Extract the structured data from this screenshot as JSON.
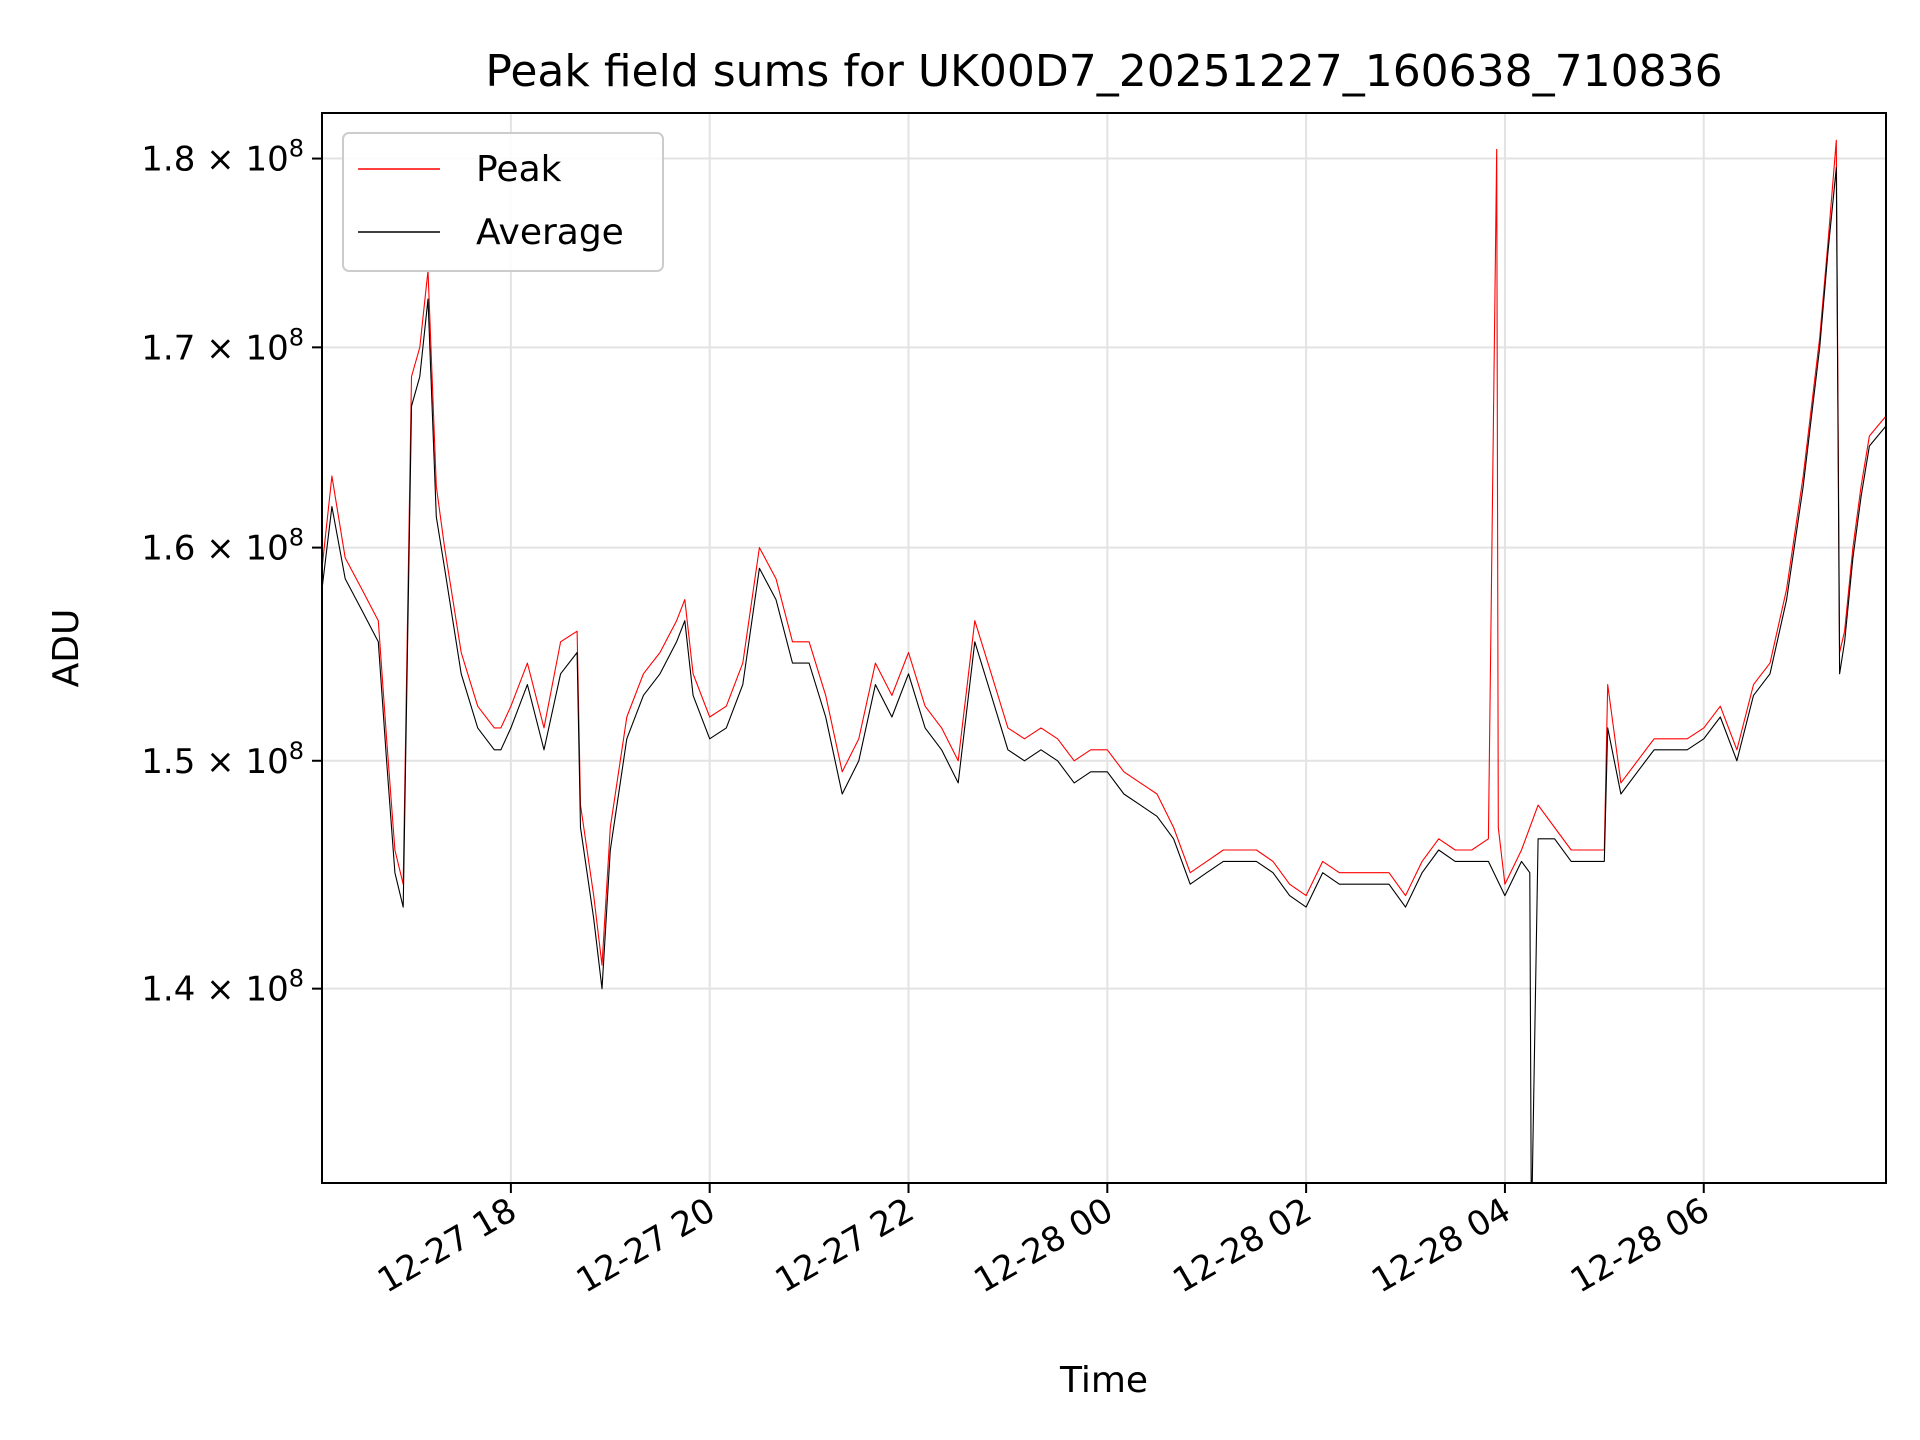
{
  "chart_data": {
    "type": "line",
    "title": "Peak field sums for UK00D7_20251227_160638_710836",
    "xlabel": "Time",
    "ylabel": "ADU",
    "scale_y": "log",
    "grid": true,
    "legend_position": "top-left",
    "xlim": [
      "2025-12-27 16:06",
      "2025-12-28 07:50"
    ],
    "ylim": [
      132000000,
      182500000
    ],
    "x_ticks": [
      {
        "t": "2025-12-27 18:00",
        "label": "12-27 18"
      },
      {
        "t": "2025-12-27 20:00",
        "label": "12-27 20"
      },
      {
        "t": "2025-12-27 22:00",
        "label": "12-27 22"
      },
      {
        "t": "2025-12-28 00:00",
        "label": "12-28 00"
      },
      {
        "t": "2025-12-28 02:00",
        "label": "12-28 02"
      },
      {
        "t": "2025-12-28 04:00",
        "label": "12-28 04"
      },
      {
        "t": "2025-12-28 06:00",
        "label": "12-28 06"
      }
    ],
    "y_ticks": [
      {
        "value": 140000000,
        "mantissa": "1.4",
        "exponent": "8"
      },
      {
        "value": 150000000,
        "mantissa": "1.5",
        "exponent": "8"
      },
      {
        "value": 160000000,
        "mantissa": "1.6",
        "exponent": "8"
      },
      {
        "value": 170000000,
        "mantissa": "1.7",
        "exponent": "8"
      },
      {
        "value": 180000000,
        "mantissa": "1.8",
        "exponent": "8"
      }
    ],
    "series": [
      {
        "name": "Average",
        "color": "#000000",
        "x": [
          "2025-12-27 16:06",
          "2025-12-27 16:12",
          "2025-12-27 16:20",
          "2025-12-27 16:30",
          "2025-12-27 16:40",
          "2025-12-27 16:45",
          "2025-12-27 16:50",
          "2025-12-27 16:55",
          "2025-12-27 17:00",
          "2025-12-27 17:05",
          "2025-12-27 17:10",
          "2025-12-27 17:15",
          "2025-12-27 17:20",
          "2025-12-27 17:30",
          "2025-12-27 17:40",
          "2025-12-27 17:50",
          "2025-12-27 17:54",
          "2025-12-27 18:00",
          "2025-12-27 18:10",
          "2025-12-27 18:20",
          "2025-12-27 18:30",
          "2025-12-27 18:40",
          "2025-12-27 18:42",
          "2025-12-27 18:50",
          "2025-12-27 18:55",
          "2025-12-27 19:00",
          "2025-12-27 19:10",
          "2025-12-27 19:20",
          "2025-12-27 19:30",
          "2025-12-27 19:40",
          "2025-12-27 19:45",
          "2025-12-27 19:50",
          "2025-12-27 20:00",
          "2025-12-27 20:10",
          "2025-12-27 20:20",
          "2025-12-27 20:30",
          "2025-12-27 20:40",
          "2025-12-27 20:50",
          "2025-12-27 21:00",
          "2025-12-27 21:10",
          "2025-12-27 21:20",
          "2025-12-27 21:30",
          "2025-12-27 21:40",
          "2025-12-27 21:50",
          "2025-12-27 22:00",
          "2025-12-27 22:10",
          "2025-12-27 22:20",
          "2025-12-27 22:30",
          "2025-12-27 22:40",
          "2025-12-27 22:50",
          "2025-12-27 23:00",
          "2025-12-27 23:10",
          "2025-12-27 23:20",
          "2025-12-27 23:30",
          "2025-12-27 23:40",
          "2025-12-27 23:50",
          "2025-12-28 00:00",
          "2025-12-28 00:10",
          "2025-12-28 00:20",
          "2025-12-28 00:30",
          "2025-12-28 00:40",
          "2025-12-28 00:50",
          "2025-12-28 01:00",
          "2025-12-28 01:10",
          "2025-12-28 01:20",
          "2025-12-28 01:30",
          "2025-12-28 01:40",
          "2025-12-28 01:50",
          "2025-12-28 02:00",
          "2025-12-28 02:10",
          "2025-12-28 02:20",
          "2025-12-28 02:30",
          "2025-12-28 02:40",
          "2025-12-28 02:50",
          "2025-12-28 03:00",
          "2025-12-28 03:10",
          "2025-12-28 03:20",
          "2025-12-28 03:30",
          "2025-12-28 03:40",
          "2025-12-28 03:50",
          "2025-12-28 04:00",
          "2025-12-28 04:10",
          "2025-12-28 04:15",
          "2025-12-28 04:16",
          "2025-12-28 04:20",
          "2025-12-28 04:30",
          "2025-12-28 04:40",
          "2025-12-28 04:50",
          "2025-12-28 05:00",
          "2025-12-28 05:02",
          "2025-12-28 05:10",
          "2025-12-28 05:20",
          "2025-12-28 05:30",
          "2025-12-28 05:40",
          "2025-12-28 05:50",
          "2025-12-28 06:00",
          "2025-12-28 06:10",
          "2025-12-28 06:20",
          "2025-12-28 06:30",
          "2025-12-28 06:40",
          "2025-12-28 06:50",
          "2025-12-28 07:00",
          "2025-12-28 07:10",
          "2025-12-28 07:15",
          "2025-12-28 07:20",
          "2025-12-28 07:22",
          "2025-12-28 07:25",
          "2025-12-28 07:30",
          "2025-12-28 07:35",
          "2025-12-28 07:40",
          "2025-12-28 07:45",
          "2025-12-28 07:50"
        ],
        "values": [
          158000000,
          162000000,
          158500000,
          157000000,
          155500000,
          150000000,
          145000000,
          143500000,
          167000000,
          168500000,
          172500000,
          161500000,
          159000000,
          154000000,
          151500000,
          150500000,
          150500000,
          151500000,
          153500000,
          150500000,
          154000000,
          155000000,
          147000000,
          143000000,
          140000000,
          146000000,
          151000000,
          153000000,
          154000000,
          155500000,
          156500000,
          153000000,
          151000000,
          151500000,
          153500000,
          159000000,
          157500000,
          154500000,
          154500000,
          152000000,
          148500000,
          150000000,
          153500000,
          152000000,
          154000000,
          151500000,
          150500000,
          149000000,
          155500000,
          153000000,
          150500000,
          150000000,
          150500000,
          150000000,
          149000000,
          149500000,
          149500000,
          148500000,
          148000000,
          147500000,
          146500000,
          144500000,
          145000000,
          145500000,
          145500000,
          145500000,
          145000000,
          144000000,
          143500000,
          145000000,
          144500000,
          144500000,
          144500000,
          144500000,
          143500000,
          145000000,
          146000000,
          145500000,
          145500000,
          145500000,
          144000000,
          145500000,
          145000000,
          130000000,
          146500000,
          146500000,
          145500000,
          145500000,
          145500000,
          151500000,
          148500000,
          149500000,
          150500000,
          150500000,
          150500000,
          151000000,
          152000000,
          150000000,
          153000000,
          154000000,
          157500000,
          163000000,
          170000000,
          175000000,
          179500000,
          154000000,
          155500000,
          159500000,
          162500000,
          165000000,
          165500000,
          166000000
        ],
        "stroke_width": 1.1
      },
      {
        "name": "Peak",
        "color": "#ff0000",
        "x": [
          "2025-12-27 16:06",
          "2025-12-27 16:12",
          "2025-12-27 16:20",
          "2025-12-27 16:30",
          "2025-12-27 16:40",
          "2025-12-27 16:45",
          "2025-12-27 16:50",
          "2025-12-27 16:55",
          "2025-12-27 17:00",
          "2025-12-27 17:05",
          "2025-12-27 17:10",
          "2025-12-27 17:15",
          "2025-12-27 17:20",
          "2025-12-27 17:30",
          "2025-12-27 17:40",
          "2025-12-27 17:50",
          "2025-12-27 17:54",
          "2025-12-27 18:00",
          "2025-12-27 18:10",
          "2025-12-27 18:20",
          "2025-12-27 18:30",
          "2025-12-27 18:40",
          "2025-12-27 18:42",
          "2025-12-27 18:50",
          "2025-12-27 18:55",
          "2025-12-27 19:00",
          "2025-12-27 19:10",
          "2025-12-27 19:20",
          "2025-12-27 19:30",
          "2025-12-27 19:40",
          "2025-12-27 19:45",
          "2025-12-27 19:50",
          "2025-12-27 20:00",
          "2025-12-27 20:10",
          "2025-12-27 20:20",
          "2025-12-27 20:30",
          "2025-12-27 20:40",
          "2025-12-27 20:50",
          "2025-12-27 21:00",
          "2025-12-27 21:10",
          "2025-12-27 21:20",
          "2025-12-27 21:30",
          "2025-12-27 21:40",
          "2025-12-27 21:50",
          "2025-12-27 22:00",
          "2025-12-27 22:10",
          "2025-12-27 22:20",
          "2025-12-27 22:30",
          "2025-12-27 22:40",
          "2025-12-27 22:50",
          "2025-12-27 23:00",
          "2025-12-27 23:10",
          "2025-12-27 23:20",
          "2025-12-27 23:30",
          "2025-12-27 23:40",
          "2025-12-27 23:50",
          "2025-12-28 00:00",
          "2025-12-28 00:10",
          "2025-12-28 00:20",
          "2025-12-28 00:30",
          "2025-12-28 00:40",
          "2025-12-28 00:50",
          "2025-12-28 01:00",
          "2025-12-28 01:10",
          "2025-12-28 01:20",
          "2025-12-28 01:30",
          "2025-12-28 01:40",
          "2025-12-28 01:50",
          "2025-12-28 02:00",
          "2025-12-28 02:10",
          "2025-12-28 02:20",
          "2025-12-28 02:30",
          "2025-12-28 02:40",
          "2025-12-28 02:50",
          "2025-12-28 03:00",
          "2025-12-28 03:10",
          "2025-12-28 03:20",
          "2025-12-28 03:30",
          "2025-12-28 03:40",
          "2025-12-28 03:50",
          "2025-12-28 03:55",
          "2025-12-28 03:56",
          "2025-12-28 04:00",
          "2025-12-28 04:10",
          "2025-12-28 04:20",
          "2025-12-28 04:30",
          "2025-12-28 04:40",
          "2025-12-28 04:50",
          "2025-12-28 05:00",
          "2025-12-28 05:02",
          "2025-12-28 05:10",
          "2025-12-28 05:20",
          "2025-12-28 05:30",
          "2025-12-28 05:40",
          "2025-12-28 05:50",
          "2025-12-28 06:00",
          "2025-12-28 06:10",
          "2025-12-28 06:20",
          "2025-12-28 06:30",
          "2025-12-28 06:40",
          "2025-12-28 06:50",
          "2025-12-28 07:00",
          "2025-12-28 07:10",
          "2025-12-28 07:15",
          "2025-12-28 07:20",
          "2025-12-28 07:22",
          "2025-12-28 07:25",
          "2025-12-28 07:30",
          "2025-12-28 07:35",
          "2025-12-28 07:40",
          "2025-12-28 07:45",
          "2025-12-28 07:50"
        ],
        "values": [
          159000000,
          163500000,
          159500000,
          158000000,
          156500000,
          151000000,
          146000000,
          144500000,
          168500000,
          170000000,
          174000000,
          163000000,
          160000000,
          155000000,
          152500000,
          151500000,
          151500000,
          152500000,
          154500000,
          151500000,
          155500000,
          156000000,
          148000000,
          144000000,
          141000000,
          147000000,
          152000000,
          154000000,
          155000000,
          156500000,
          157500000,
          154000000,
          152000000,
          152500000,
          154500000,
          160000000,
          158500000,
          155500000,
          155500000,
          153000000,
          149500000,
          151000000,
          154500000,
          153000000,
          155000000,
          152500000,
          151500000,
          150000000,
          156500000,
          154000000,
          151500000,
          151000000,
          151500000,
          151000000,
          150000000,
          150500000,
          150500000,
          149500000,
          149000000,
          148500000,
          147000000,
          145000000,
          145500000,
          146000000,
          146000000,
          146000000,
          145500000,
          144500000,
          144000000,
          145500000,
          145000000,
          145000000,
          145000000,
          145000000,
          144000000,
          145500000,
          146500000,
          146000000,
          146000000,
          146500000,
          180500000,
          147000000,
          144500000,
          146000000,
          148000000,
          147000000,
          146000000,
          146000000,
          146000000,
          153500000,
          149000000,
          150000000,
          151000000,
          151000000,
          151000000,
          151500000,
          152500000,
          150500000,
          153500000,
          154500000,
          158000000,
          163500000,
          170500000,
          175500000,
          181000000,
          155000000,
          156000000,
          160000000,
          163000000,
          165500000,
          166000000,
          166500000
        ],
        "stroke_width": 1.1
      }
    ]
  }
}
